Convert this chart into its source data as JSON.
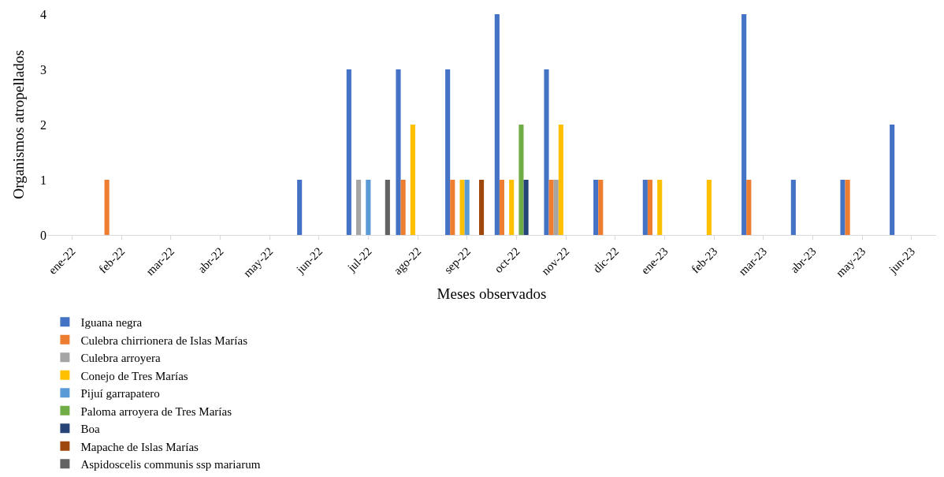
{
  "chart_data": {
    "type": "bar",
    "xlabel": "Meses observados",
    "ylabel": "Organismos atropellados",
    "categories": [
      "ene-22",
      "feb-22",
      "mar-22",
      "abr-22",
      "may-22",
      "jun-22",
      "jul-22",
      "ago-22",
      "sep-22",
      "oct-22",
      "nov-22",
      "dic-22",
      "ene-23",
      "feb-23",
      "mar-23",
      "abr-23",
      "may-23",
      "jun-23"
    ],
    "ylim": [
      0,
      4
    ],
    "yticks": [
      0,
      1,
      2,
      3,
      4
    ],
    "grid": false,
    "legend": "bottom",
    "series": [
      {
        "name": "Iguana negra",
        "color": "#4472c4",
        "values": [
          0,
          0,
          0,
          0,
          0,
          1,
          3,
          3,
          3,
          4,
          3,
          1,
          1,
          0,
          4,
          1,
          1,
          2
        ]
      },
      {
        "name": "Culebra chirrionera de Islas Marías",
        "color": "#ed7d31",
        "values": [
          0,
          1,
          0,
          0,
          0,
          0,
          0,
          1,
          1,
          1,
          1,
          1,
          1,
          0,
          1,
          0,
          1,
          0
        ]
      },
      {
        "name": "Culebra arroyera",
        "color": "#a5a5a5",
        "values": [
          0,
          0,
          0,
          0,
          0,
          0,
          1,
          0,
          0,
          0,
          1,
          0,
          0,
          0,
          0,
          0,
          0,
          0
        ]
      },
      {
        "name": "Conejo de Tres Marías",
        "color": "#ffc000",
        "values": [
          0,
          0,
          0,
          0,
          0,
          0,
          0,
          2,
          1,
          1,
          2,
          0,
          1,
          1,
          0,
          0,
          0,
          0
        ]
      },
      {
        "name": "Pijuí garrapatero",
        "color": "#5b9bd5",
        "values": [
          0,
          0,
          0,
          0,
          0,
          0,
          1,
          0,
          1,
          0,
          0,
          0,
          0,
          0,
          0,
          0,
          0,
          0
        ]
      },
      {
        "name": "Paloma arroyera de Tres Marías",
        "color": "#70ad47",
        "values": [
          0,
          0,
          0,
          0,
          0,
          0,
          0,
          0,
          0,
          2,
          0,
          0,
          0,
          0,
          0,
          0,
          0,
          0
        ]
      },
      {
        "name": "Boa",
        "color": "#264478",
        "values": [
          0,
          0,
          0,
          0,
          0,
          0,
          0,
          0,
          0,
          1,
          0,
          0,
          0,
          0,
          0,
          0,
          0,
          0
        ]
      },
      {
        "name": "Mapache de Islas Marías",
        "color": "#9e480e",
        "values": [
          0,
          0,
          0,
          0,
          0,
          0,
          0,
          0,
          1,
          0,
          0,
          0,
          0,
          0,
          0,
          0,
          0,
          0
        ]
      },
      {
        "name": "Aspidoscelis communis ssp mariarum",
        "color": "#636363",
        "values": [
          0,
          0,
          0,
          0,
          0,
          0,
          1,
          0,
          0,
          0,
          0,
          0,
          0,
          0,
          0,
          0,
          0,
          0
        ]
      }
    ]
  }
}
